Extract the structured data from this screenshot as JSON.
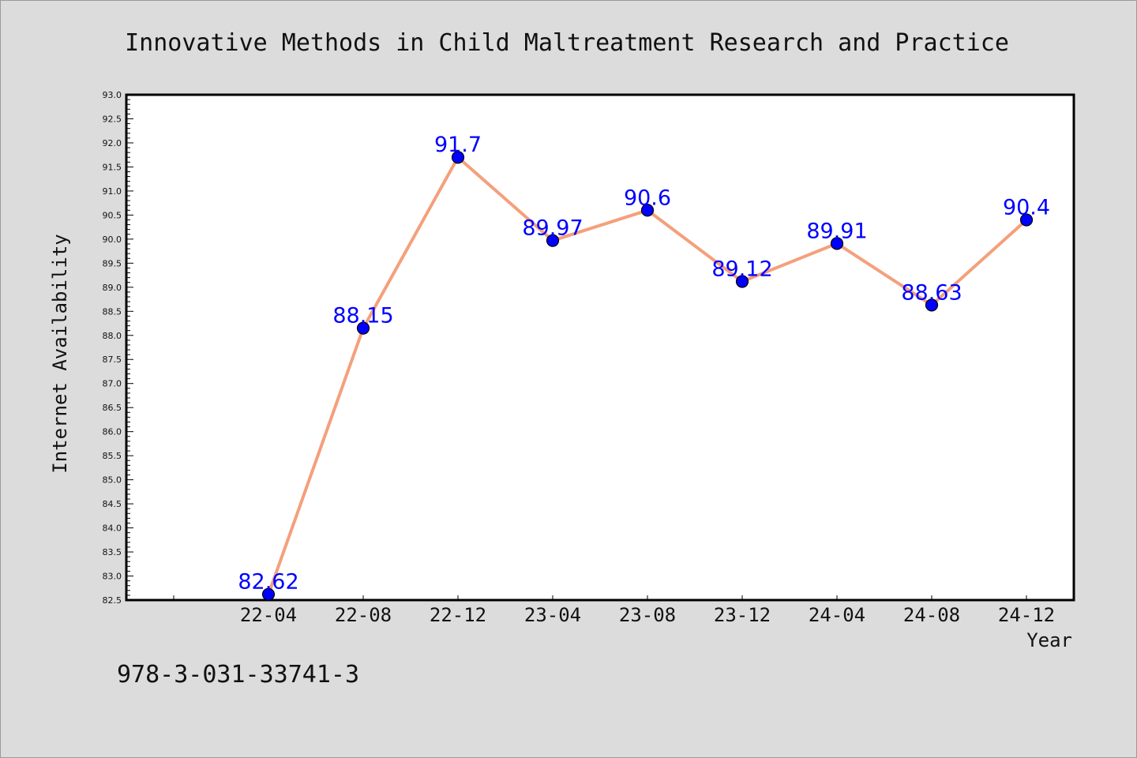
{
  "footnote": "978-3-031-33741-3",
  "colors": {
    "background": "#dcdcdc",
    "plot_background": "#ffffff",
    "line": "#f4a07c",
    "marker": "#0000ff",
    "data_label": "#0000ff"
  },
  "chart_data": {
    "type": "line",
    "title": "Innovative Methods in Child Maltreatment Research and Practice",
    "xlabel": "Year",
    "ylabel": "Internet Availability",
    "categories": [
      "22-04",
      "22-08",
      "22-12",
      "23-04",
      "23-08",
      "23-12",
      "24-04",
      "24-08",
      "24-12"
    ],
    "series": [
      {
        "values": [
          82.62,
          88.15,
          91.7,
          89.97,
          90.6,
          89.12,
          89.91,
          88.63,
          90.4
        ],
        "data_labels": [
          "82.62",
          "88.15",
          "91.7",
          "89.97",
          "90.6",
          "89.12",
          "89.91",
          "88.63",
          "90.4"
        ]
      }
    ],
    "ylim": [
      82.5,
      93.0
    ],
    "y_tick_step": 0.5,
    "y_minor_step": 0.1,
    "grid": false,
    "legend": "none"
  }
}
